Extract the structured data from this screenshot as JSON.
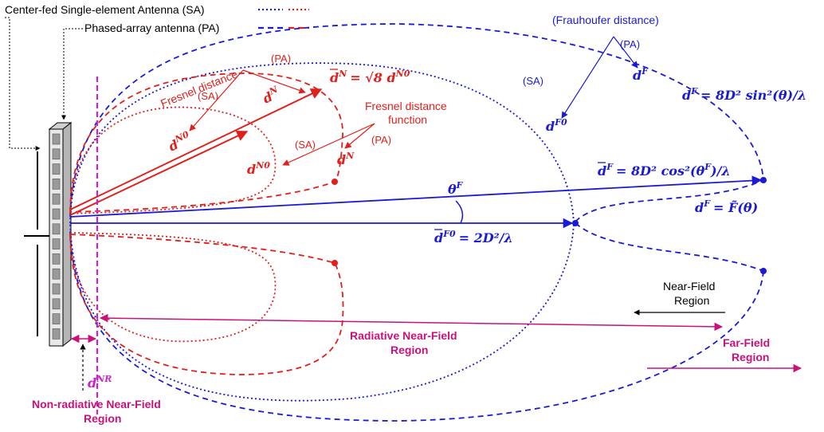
{
  "legend": {
    "sa_label": "Center-fed Single-element Antenna (SA)",
    "pa_label": "Phased-array antenna (PA)"
  },
  "labels": {
    "frauhoufer": "(Frauhoufer distance)",
    "fresnel_distance": "Fresnel distance",
    "fresnel_function_line1": "Fresnel distance",
    "fresnel_function_line2": "function",
    "pa_1": "(PA)",
    "pa_2": "(PA)",
    "pa_3": "(PA)",
    "sa_1": "(SA)",
    "sa_2": "(SA)",
    "sa_3": "(SA)",
    "near_field_line1": "Near-Field",
    "near_field_line2": "Region",
    "radiative_line1": "Radiative  Near-Field",
    "radiative_line2": "Region",
    "far_field_line1": "Far-Field",
    "far_field_line2": "Region",
    "non_radiative_line1": "Non-radiative Near-Field",
    "non_radiative_line2": "Region"
  },
  "math": {
    "dF": "d",
    "dF_sup": "F",
    "dF_eq": "= 8D² sin²(θ)/λ",
    "dFbar_eq": "= 8D² cos²(θ",
    "dFbar_eq_end": ")/λ",
    "dF_func": "= F̃(θ)",
    "dF0_eq": "= 2D²/λ",
    "dN_eq": "= √8 d",
    "theta": "θ",
    "F": "F",
    "F0": "F0",
    "N": "N",
    "N0": "N0",
    "NR": "NR",
    "d": "d"
  },
  "colors": {
    "sa_blue": "#1a1ad6",
    "pa_blue": "#1a1ad6",
    "red": "#e0201c",
    "magenta": "#c8127a",
    "violet": "#cc22cc"
  }
}
